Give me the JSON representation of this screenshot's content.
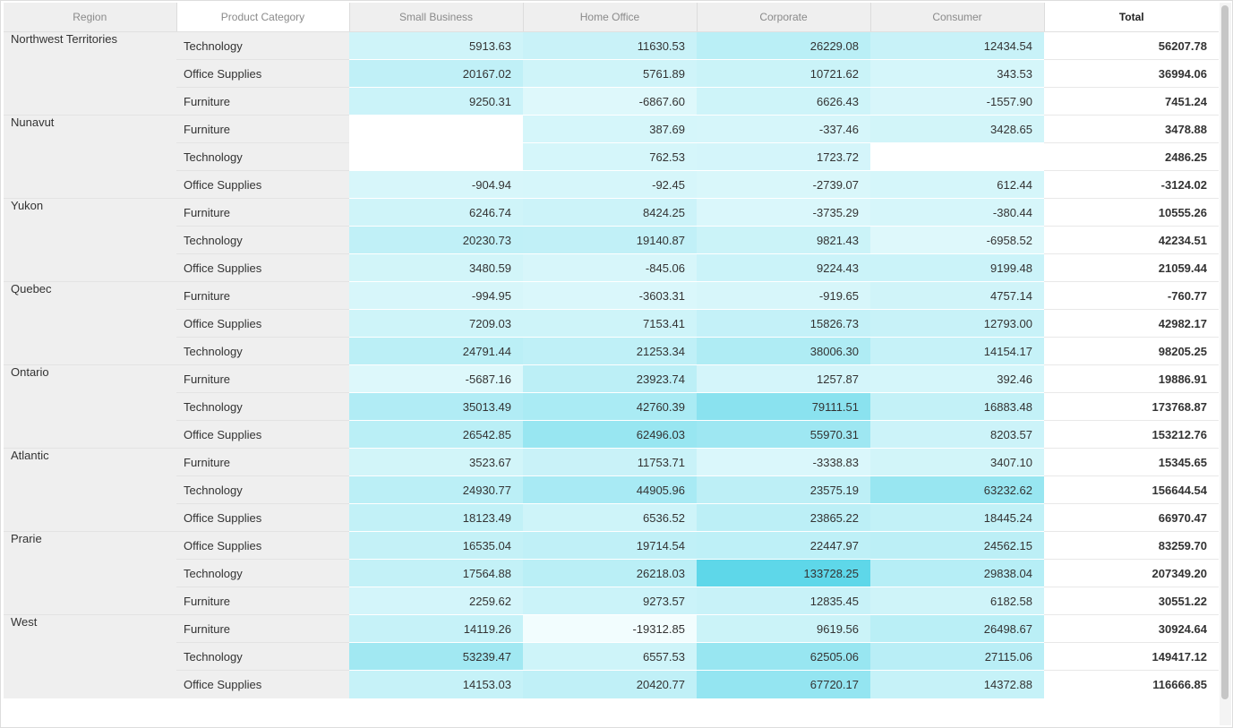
{
  "header": {
    "region": "Region",
    "category": "Product Category",
    "segments": [
      "Small Business",
      "Home Office",
      "Corporate",
      "Consumer"
    ],
    "total": "Total"
  },
  "colors": {
    "heat_low": "#f2fdfe",
    "heat_high": "#5ed7e9"
  },
  "regions": [
    {
      "name": "Northwest Territories",
      "rows": [
        {
          "category": "Technology",
          "values": [
            "5913.63",
            "11630.53",
            "26229.08",
            "12434.54"
          ],
          "total": "56207.78"
        },
        {
          "category": "Office Supplies",
          "values": [
            "20167.02",
            "5761.89",
            "10721.62",
            "343.53"
          ],
          "total": "36994.06"
        },
        {
          "category": "Furniture",
          "values": [
            "9250.31",
            "-6867.60",
            "6626.43",
            "-1557.90"
          ],
          "total": "7451.24"
        }
      ]
    },
    {
      "name": "Nunavut",
      "rows": [
        {
          "category": "Furniture",
          "values": [
            "",
            "387.69",
            "-337.46",
            "3428.65"
          ],
          "total": "3478.88"
        },
        {
          "category": "Technology",
          "values": [
            "",
            "762.53",
            "1723.72",
            ""
          ],
          "total": "2486.25"
        },
        {
          "category": "Office Supplies",
          "values": [
            "-904.94",
            "-92.45",
            "-2739.07",
            "612.44"
          ],
          "total": "-3124.02"
        }
      ]
    },
    {
      "name": "Yukon",
      "rows": [
        {
          "category": "Furniture",
          "values": [
            "6246.74",
            "8424.25",
            "-3735.29",
            "-380.44"
          ],
          "total": "10555.26"
        },
        {
          "category": "Technology",
          "values": [
            "20230.73",
            "19140.87",
            "9821.43",
            "-6958.52"
          ],
          "total": "42234.51"
        },
        {
          "category": "Office Supplies",
          "values": [
            "3480.59",
            "-845.06",
            "9224.43",
            "9199.48"
          ],
          "total": "21059.44"
        }
      ]
    },
    {
      "name": "Quebec",
      "rows": [
        {
          "category": "Furniture",
          "values": [
            "-994.95",
            "-3603.31",
            "-919.65",
            "4757.14"
          ],
          "total": "-760.77"
        },
        {
          "category": "Office Supplies",
          "values": [
            "7209.03",
            "7153.41",
            "15826.73",
            "12793.00"
          ],
          "total": "42982.17"
        },
        {
          "category": "Technology",
          "values": [
            "24791.44",
            "21253.34",
            "38006.30",
            "14154.17"
          ],
          "total": "98205.25"
        }
      ]
    },
    {
      "name": "Ontario",
      "rows": [
        {
          "category": "Furniture",
          "values": [
            "-5687.16",
            "23923.74",
            "1257.87",
            "392.46"
          ],
          "total": "19886.91"
        },
        {
          "category": "Technology",
          "values": [
            "35013.49",
            "42760.39",
            "79111.51",
            "16883.48"
          ],
          "total": "173768.87"
        },
        {
          "category": "Office Supplies",
          "values": [
            "26542.85",
            "62496.03",
            "55970.31",
            "8203.57"
          ],
          "total": "153212.76"
        }
      ]
    },
    {
      "name": "Atlantic",
      "rows": [
        {
          "category": "Furniture",
          "values": [
            "3523.67",
            "11753.71",
            "-3338.83",
            "3407.10"
          ],
          "total": "15345.65"
        },
        {
          "category": "Technology",
          "values": [
            "24930.77",
            "44905.96",
            "23575.19",
            "63232.62"
          ],
          "total": "156644.54"
        },
        {
          "category": "Office Supplies",
          "values": [
            "18123.49",
            "6536.52",
            "23865.22",
            "18445.24"
          ],
          "total": "66970.47"
        }
      ]
    },
    {
      "name": "Prarie",
      "rows": [
        {
          "category": "Office Supplies",
          "values": [
            "16535.04",
            "19714.54",
            "22447.97",
            "24562.15"
          ],
          "total": "83259.70"
        },
        {
          "category": "Technology",
          "values": [
            "17564.88",
            "26218.03",
            "133728.25",
            "29838.04"
          ],
          "total": "207349.20"
        },
        {
          "category": "Furniture",
          "values": [
            "2259.62",
            "9273.57",
            "12835.45",
            "6182.58"
          ],
          "total": "30551.22"
        }
      ]
    },
    {
      "name": "West",
      "rows": [
        {
          "category": "Furniture",
          "values": [
            "14119.26",
            "-19312.85",
            "9619.56",
            "26498.67"
          ],
          "total": "30924.64"
        },
        {
          "category": "Technology",
          "values": [
            "53239.47",
            "6557.53",
            "62505.06",
            "27115.06"
          ],
          "total": "149417.12"
        },
        {
          "category": "Office Supplies",
          "values": [
            "14153.03",
            "20420.77",
            "67720.17",
            "14372.88"
          ],
          "total": "116666.85"
        }
      ]
    }
  ]
}
